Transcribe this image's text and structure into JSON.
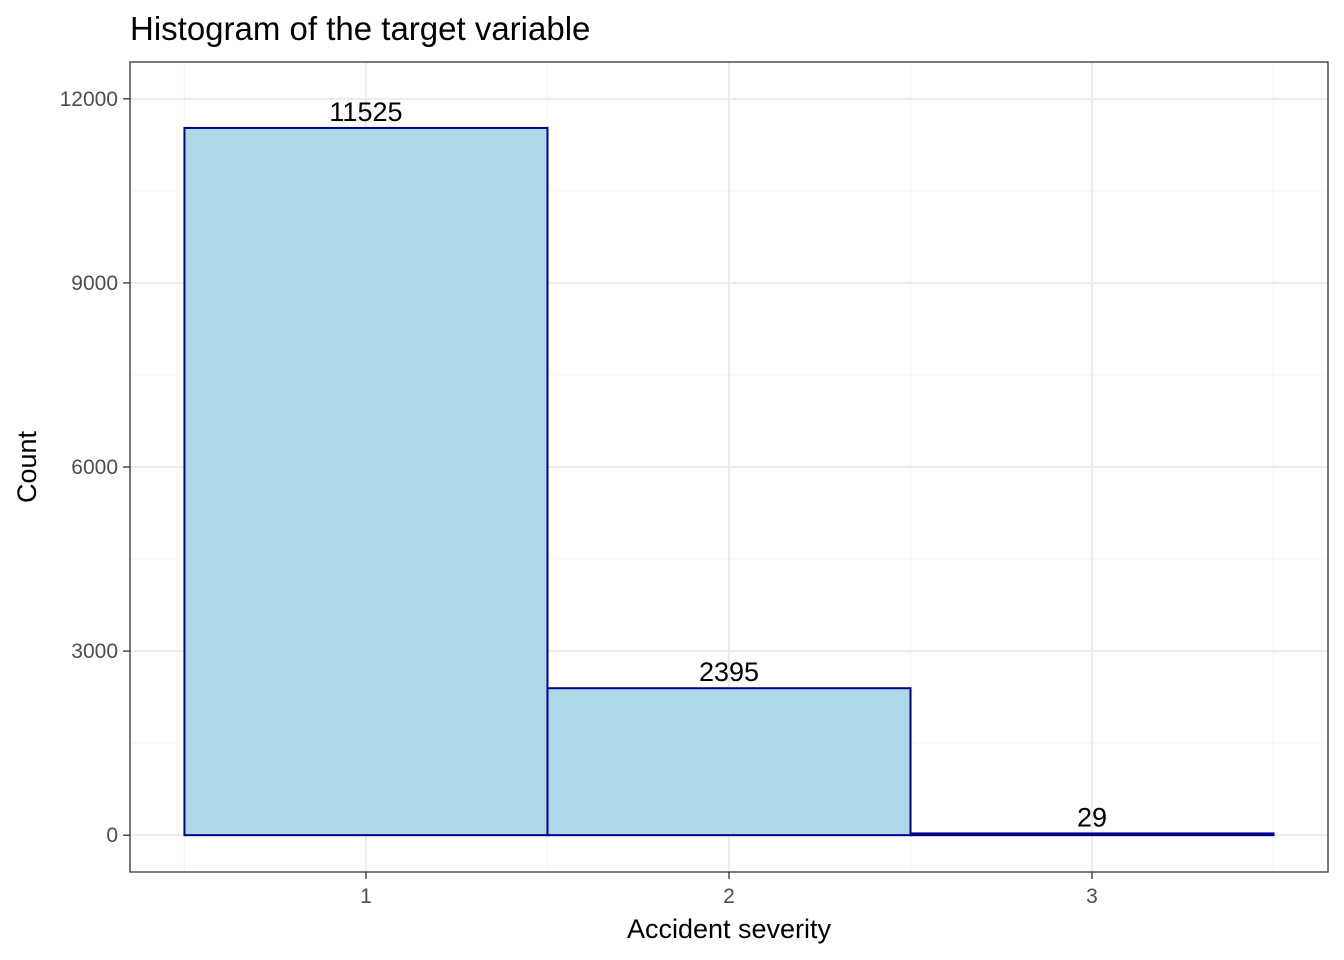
{
  "chart_data": {
    "type": "bar",
    "title": "Histogram of the target variable",
    "xlabel": "Accident severity",
    "ylabel": "Count",
    "categories": [
      "1",
      "2",
      "3"
    ],
    "values": [
      11525,
      2395,
      29
    ],
    "data_labels": [
      "11525",
      "2395",
      "29"
    ],
    "xlim": [
      0.5,
      3.5
    ],
    "ylim": [
      0,
      12000
    ],
    "yticks": [
      0,
      3000,
      6000,
      9000,
      12000
    ],
    "ytick_labels": [
      "0",
      "3000",
      "6000",
      "9000",
      "12000"
    ],
    "grid": true,
    "legend": "none",
    "colors": {
      "bar_fill": "#add8e6",
      "bar_stroke": "#00008b",
      "grid_major": "#ebebeb",
      "grid_minor": "#f5f5f5",
      "panel_border": "#333333"
    }
  }
}
